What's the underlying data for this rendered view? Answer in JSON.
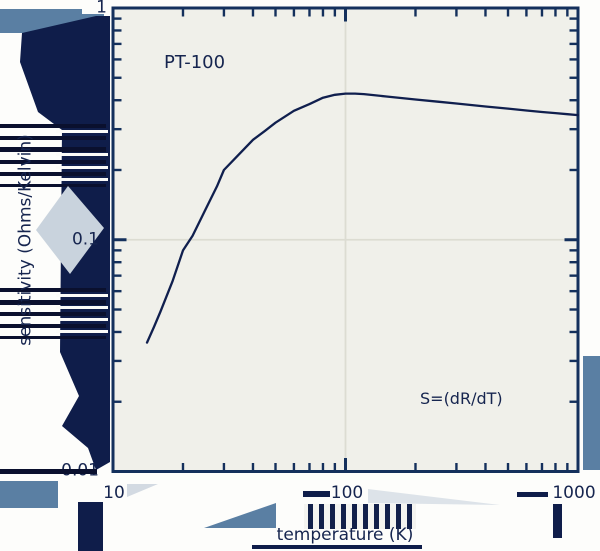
{
  "chart_data": {
    "type": "line",
    "title": "PT-100",
    "annotation": "S=(dR/dT)",
    "xlabel": "temperature (K)",
    "ylabel": "sensitivity (Ohms/Kelvin)",
    "x_scale": "log",
    "y_scale": "log",
    "xlim": [
      10,
      1000
    ],
    "ylim": [
      0.01,
      1
    ],
    "x_tick_labels": [
      "10",
      "100",
      "1000"
    ],
    "y_tick_labels": [
      "1",
      "0.1",
      "0.01"
    ],
    "grid": true,
    "legend": "none",
    "series": [
      {
        "name": "PT-100 sensitivity S=dR/dT",
        "x": [
          14,
          15,
          16,
          18,
          20,
          22,
          25,
          28,
          30,
          35,
          40,
          45,
          50,
          60,
          70,
          80,
          90,
          100,
          110,
          120,
          150,
          200,
          250,
          300,
          400,
          500,
          600,
          700,
          800,
          900,
          1000
        ],
        "y": [
          0.036,
          0.042,
          0.049,
          0.066,
          0.09,
          0.104,
          0.135,
          0.17,
          0.2,
          0.235,
          0.27,
          0.295,
          0.32,
          0.36,
          0.385,
          0.41,
          0.422,
          0.427,
          0.427,
          0.425,
          0.415,
          0.403,
          0.394,
          0.387,
          0.376,
          0.368,
          0.361,
          0.356,
          0.352,
          0.348,
          0.345
        ]
      }
    ],
    "colors": {
      "curve": "#101f4e",
      "frame": "#14305c",
      "grid": "#dcdcd2",
      "plot_bg": "#f0f0ea",
      "text": "#16254f"
    }
  }
}
